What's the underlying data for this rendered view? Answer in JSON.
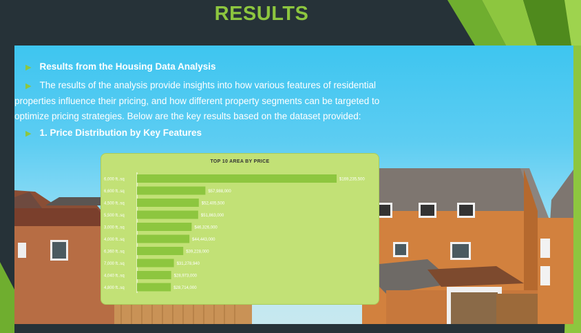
{
  "slide": {
    "title": "RESULTS"
  },
  "bullets": [
    {
      "text": "Results from the Housing Data Analysis",
      "bold": true
    },
    {
      "text": "The results of the analysis provide insights into how various features of residential properties influence their pricing, and how different property segments can be targeted to optimize pricing strategies. Below are the key results based on the dataset provided:",
      "line1": "The results of the analysis provide insights into how various features of residential",
      "line2": "properties influence their pricing, and how different property segments can be targeted to",
      "line3": "optimize pricing strategies. Below are the key results based on the dataset provided:",
      "bold": false
    },
    {
      "text": "1. Price Distribution by Key Features",
      "bold": true
    }
  ],
  "colors": {
    "title": "#8dc63f",
    "bar": "#8dc63f",
    "chart_bg": "#c2e176",
    "bullet_arrow": "#8dc63f"
  },
  "chart_data": {
    "type": "bar",
    "orientation": "horizontal",
    "title": "TOP 10 AREA BY PRICE",
    "categories": [
      "6,000 ft..sq",
      "6,600 ft..sq",
      "4,500 ft..sq",
      "5,500 ft..sq",
      "3,000 ft..sq",
      "4,000 ft..sq",
      "6,360 ft..sq",
      "7,000 ft..sq",
      "4,040 ft..sq",
      "4,800 ft..sq"
    ],
    "values": [
      169235500,
      57988000,
      52405500,
      51863000,
      46326000,
      44443000,
      39228000,
      31278940,
      28973000,
      28714000
    ],
    "value_labels": [
      "$169,235,500",
      "$57,988,000",
      "$52,405,500",
      "$51,863,000",
      "$46,326,000",
      "$44,443,000",
      "$39,228,000",
      "$31,278,940",
      "$28,973,000",
      "$28,714,000"
    ],
    "xlim": [
      0,
      169235500
    ],
    "grid": false,
    "legend": "none"
  }
}
